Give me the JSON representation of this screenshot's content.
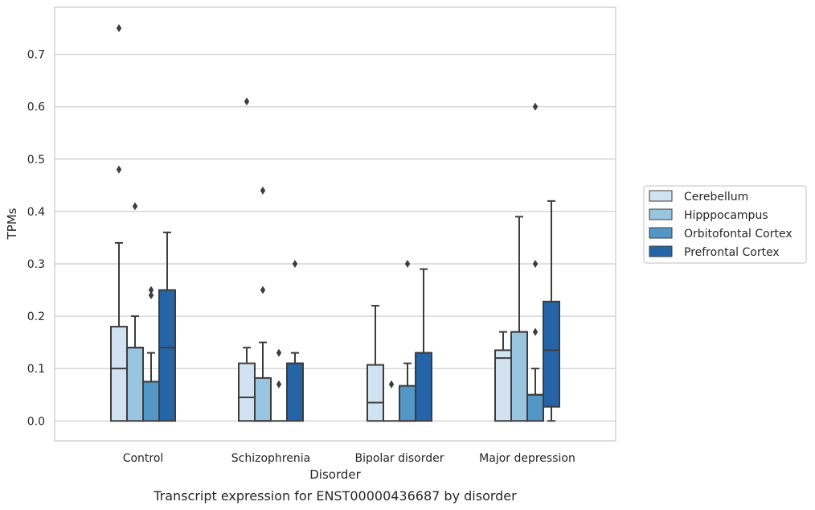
{
  "chart_data": {
    "type": "box",
    "title": "",
    "caption": "Transcript expression for ENST00000436687 by disorder",
    "xlabel": "Disorder",
    "ylabel": "TPMs",
    "ylim": [
      -0.038,
      0.79
    ],
    "yticks": [
      0.0,
      0.1,
      0.2,
      0.3,
      0.4,
      0.5,
      0.6,
      0.7
    ],
    "ytick_labels": [
      "0.0",
      "0.1",
      "0.2",
      "0.3",
      "0.4",
      "0.5",
      "0.6",
      "0.7"
    ],
    "grid": "horizontal",
    "legend_position": "right",
    "categories": [
      "Control",
      "Schizophrenia",
      "Bipolar disorder",
      "Major depression"
    ],
    "series": [
      {
        "name": "Cerebellum",
        "color": "#d1e2f1",
        "boxes": [
          {
            "whislo": 0.0,
            "q1": 0.0,
            "med": 0.1,
            "q3": 0.18,
            "whishi": 0.34,
            "fliers": [
              0.75,
              0.48
            ]
          },
          {
            "whislo": 0.0,
            "q1": 0.0,
            "med": 0.045,
            "q3": 0.11,
            "whishi": 0.14,
            "fliers": [
              0.61
            ]
          },
          {
            "whislo": 0.0,
            "q1": 0.0,
            "med": 0.035,
            "q3": 0.107,
            "whishi": 0.22,
            "fliers": []
          },
          {
            "whislo": 0.0,
            "q1": 0.0,
            "med": 0.12,
            "q3": 0.135,
            "whishi": 0.17,
            "fliers": []
          }
        ]
      },
      {
        "name": "Hipppocampus",
        "color": "#9ac5de",
        "boxes": [
          {
            "whislo": 0.0,
            "q1": 0.0,
            "med": 0.14,
            "q3": 0.14,
            "whishi": 0.2,
            "fliers": [
              0.41
            ]
          },
          {
            "whislo": 0.0,
            "q1": 0.0,
            "med": 0.0,
            "q3": 0.082,
            "whishi": 0.15,
            "fliers": [
              0.44,
              0.25
            ]
          },
          {
            "whislo": 0.0,
            "q1": 0.0,
            "med": 0.0,
            "q3": 0.0,
            "whishi": 0.0,
            "fliers": [
              0.07
            ]
          },
          {
            "whislo": 0.0,
            "q1": 0.0,
            "med": 0.17,
            "q3": 0.17,
            "whishi": 0.39,
            "fliers": []
          }
        ]
      },
      {
        "name": "Orbitofontal Cortex",
        "color": "#5297c6",
        "boxes": [
          {
            "whislo": 0.0,
            "q1": 0.0,
            "med": 0.075,
            "q3": 0.075,
            "whishi": 0.13,
            "fliers": [
              0.25,
              0.24
            ]
          },
          {
            "whislo": 0.0,
            "q1": 0.0,
            "med": 0.0,
            "q3": 0.0,
            "whishi": 0.0,
            "fliers": [
              0.13,
              0.07
            ]
          },
          {
            "whislo": 0.0,
            "q1": 0.0,
            "med": 0.0,
            "q3": 0.067,
            "whishi": 0.11,
            "fliers": [
              0.3
            ]
          },
          {
            "whislo": 0.0,
            "q1": 0.0,
            "med": 0.05,
            "q3": 0.05,
            "whishi": 0.1,
            "fliers": [
              0.3,
              0.17,
              0.6
            ]
          }
        ]
      },
      {
        "name": "Prefrontal Cortex",
        "color": "#2565a7",
        "boxes": [
          {
            "whislo": 0.0,
            "q1": 0.0,
            "med": 0.14,
            "q3": 0.25,
            "whishi": 0.36,
            "fliers": []
          },
          {
            "whislo": 0.0,
            "q1": 0.0,
            "med": 0.11,
            "q3": 0.11,
            "whishi": 0.13,
            "fliers": [
              0.3
            ]
          },
          {
            "whislo": 0.0,
            "q1": 0.0,
            "med": 0.13,
            "q3": 0.13,
            "whishi": 0.29,
            "fliers": []
          },
          {
            "whislo": 0.0,
            "q1": 0.027,
            "med": 0.135,
            "q3": 0.228,
            "whishi": 0.42,
            "fliers": []
          }
        ]
      }
    ]
  }
}
